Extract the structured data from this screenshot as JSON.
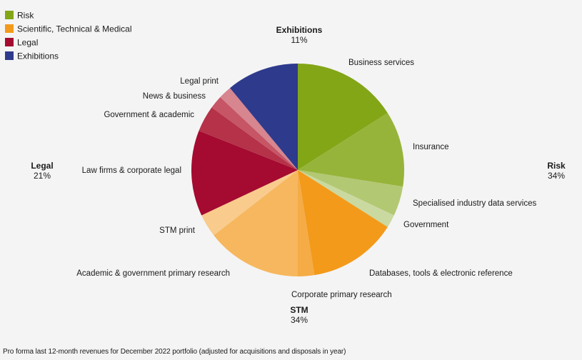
{
  "chart_data": {
    "type": "pie",
    "start_angle_deg": 0,
    "direction": "clockwise",
    "legend": {
      "position": "top-left",
      "items": [
        {
          "label": "Risk",
          "color": "#83a617"
        },
        {
          "label": "Scientific, Technical  & Medical",
          "color": "#f39a1a"
        },
        {
          "label": "Legal",
          "color": "#a50a30"
        },
        {
          "label": "Exhibitions",
          "color": "#2e3a8c"
        }
      ]
    },
    "groups": [
      {
        "name": "Exhibitions",
        "pct": "11%"
      },
      {
        "name": "Risk",
        "pct": "34%"
      },
      {
        "name": "STM",
        "pct": "34%"
      },
      {
        "name": "Legal",
        "pct": "21%"
      }
    ],
    "slices": [
      {
        "label": "Business services",
        "group": "Risk",
        "value": 16.0,
        "color": "#83a617"
      },
      {
        "label": "Insurance",
        "group": "Risk",
        "value": 11.5,
        "color": "#97b43a"
      },
      {
        "label": "Specialised industry data services",
        "group": "Risk",
        "value": 4.5,
        "color": "#b3c873"
      },
      {
        "label": "Government",
        "group": "Risk",
        "value": 2.0,
        "color": "#cad9a0"
      },
      {
        "label": "Databases, tools & electronic reference",
        "group": "STM",
        "value": 13.5,
        "color": "#f39a1a"
      },
      {
        "label": "Corporate primary research",
        "group": "STM",
        "value": 2.5,
        "color": "#f5ab46"
      },
      {
        "label": "Academic & government primary research",
        "group": "STM",
        "value": 14.5,
        "color": "#f7b75e"
      },
      {
        "label": "STM print",
        "group": "STM",
        "value": 3.5,
        "color": "#f9cb8d"
      },
      {
        "label": "Law firms &  corporate legal",
        "group": "Legal",
        "value": 13.0,
        "color": "#a50a30"
      },
      {
        "label": "Government & academic",
        "group": "Legal",
        "value": 4.0,
        "color": "#b53249"
      },
      {
        "label": "News & business",
        "group": "Legal",
        "value": 2.0,
        "color": "#c65566"
      },
      {
        "label": "Legal print",
        "group": "Legal",
        "value": 2.0,
        "color": "#d7858f"
      },
      {
        "label": "Exhibitions",
        "group": "Exhibitions",
        "value": 11.0,
        "color": "#2e3a8c"
      }
    ]
  },
  "footnote": "Pro forma last 12-month revenues for December 2022 portfolio (adjusted for acquisitions and disposals in year)"
}
